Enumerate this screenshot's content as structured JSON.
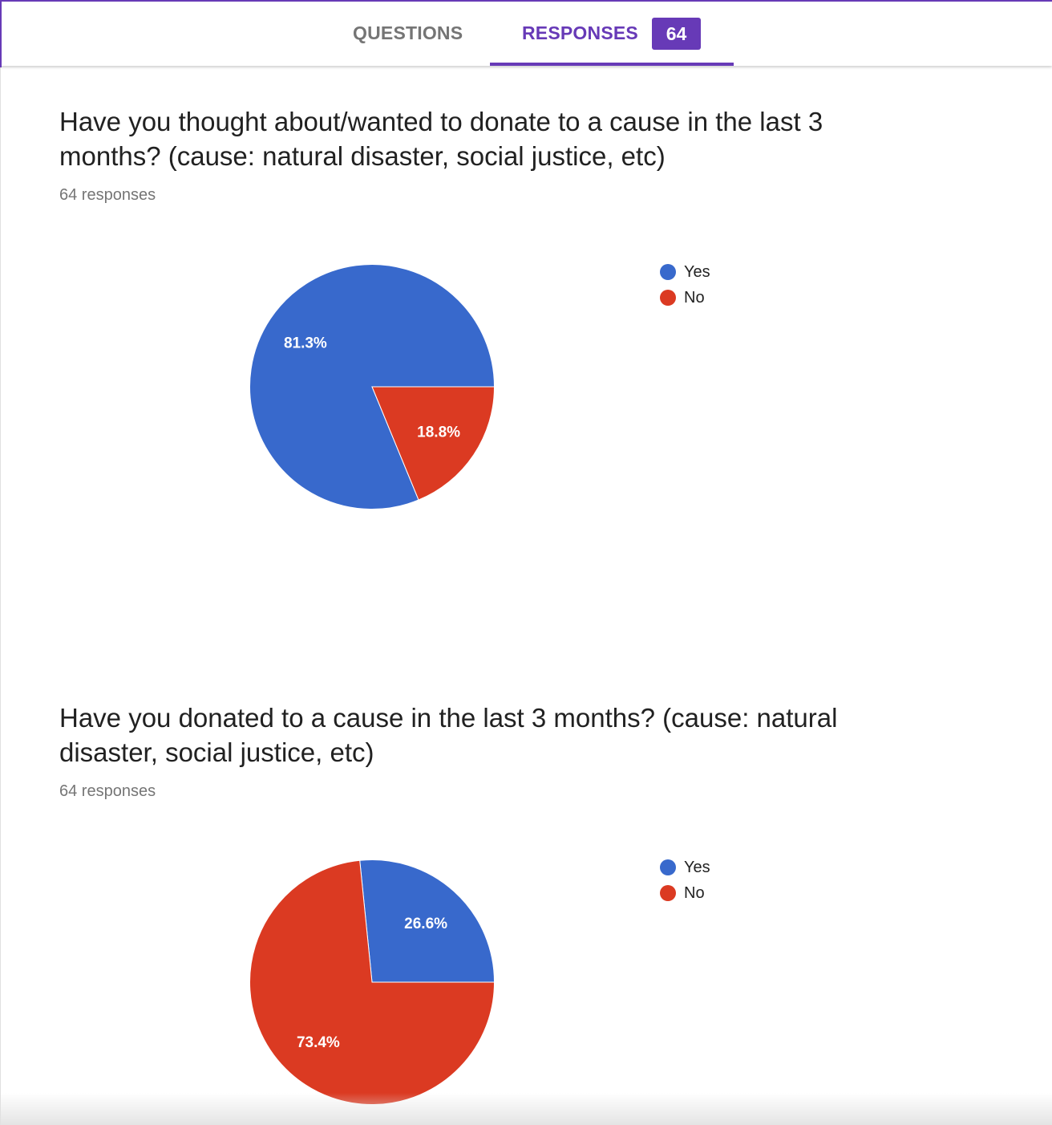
{
  "tabs": {
    "questions_label": "QUESTIONS",
    "responses_label": "RESPONSES",
    "responses_count": "64"
  },
  "colors": {
    "accent": "#673ab7",
    "yes": "#3869cc",
    "no": "#db3a22"
  },
  "questions": [
    {
      "title": "Have you thought about/wanted to donate to a cause in the last 3 months? (cause: natural disaster, social justice, etc)",
      "response_count": "64 responses",
      "legend": [
        {
          "label": "Yes",
          "color": "#3869cc"
        },
        {
          "label": "No",
          "color": "#db3a22"
        }
      ]
    },
    {
      "title": "Have you donated to a cause in the last 3 months? (cause: natural disaster, social justice, etc)",
      "response_count": "64 responses",
      "legend": [
        {
          "label": "Yes",
          "color": "#3869cc"
        },
        {
          "label": "No",
          "color": "#db3a22"
        }
      ]
    }
  ],
  "chart_data": [
    {
      "type": "pie",
      "categories": [
        "Yes",
        "No"
      ],
      "values": [
        81.3,
        18.8
      ],
      "labels": [
        "81.3%",
        "18.8%"
      ],
      "colors": [
        "#3869cc",
        "#db3a22"
      ],
      "legend": "right"
    },
    {
      "type": "pie",
      "categories": [
        "Yes",
        "No"
      ],
      "values": [
        26.6,
        73.4
      ],
      "labels": [
        "26.6%",
        "73.4%"
      ],
      "colors": [
        "#3869cc",
        "#db3a22"
      ],
      "legend": "right"
    }
  ]
}
